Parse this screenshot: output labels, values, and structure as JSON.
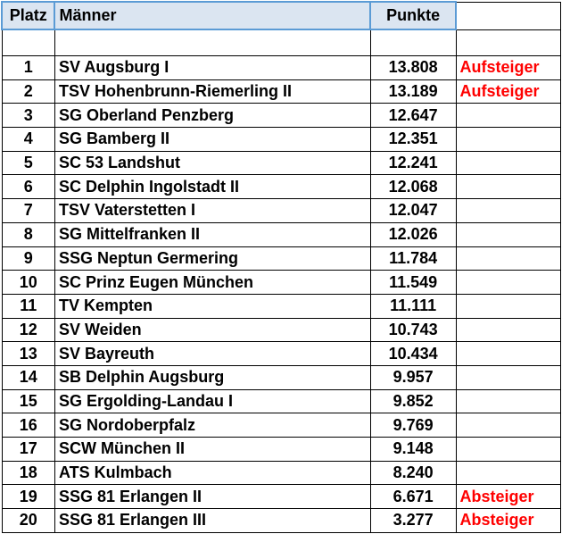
{
  "header": {
    "platz": "Platz",
    "name": "Männer",
    "punkte": "Punkte"
  },
  "colors": {
    "header_bg": "#dbe5f1",
    "header_border": "#5b9bd5",
    "status": "#ff0000"
  },
  "rows": [
    {
      "platz": "1",
      "name": "SV Augsburg I",
      "punkte": "13.808",
      "status": "Aufsteiger"
    },
    {
      "platz": "2",
      "name": "TSV Hohenbrunn-Riemerling II",
      "punkte": "13.189",
      "status": "Aufsteiger"
    },
    {
      "platz": "3",
      "name": "SG Oberland Penzberg",
      "punkte": "12.647",
      "status": ""
    },
    {
      "platz": "4",
      "name": "SG Bamberg II",
      "punkte": "12.351",
      "status": ""
    },
    {
      "platz": "5",
      "name": "SC 53 Landshut",
      "punkte": "12.241",
      "status": ""
    },
    {
      "platz": "6",
      "name": "SC Delphin Ingolstadt II",
      "punkte": "12.068",
      "status": ""
    },
    {
      "platz": "7",
      "name": "TSV Vaterstetten I",
      "punkte": "12.047",
      "status": ""
    },
    {
      "platz": "8",
      "name": "SG Mittelfranken II",
      "punkte": "12.026",
      "status": ""
    },
    {
      "platz": "9",
      "name": "SSG Neptun Germering",
      "punkte": "11.784",
      "status": ""
    },
    {
      "platz": "10",
      "name": "SC Prinz Eugen München",
      "punkte": "11.549",
      "status": ""
    },
    {
      "platz": "11",
      "name": "TV Kempten",
      "punkte": "11.111",
      "status": ""
    },
    {
      "platz": "12",
      "name": "SV Weiden",
      "punkte": "10.743",
      "status": ""
    },
    {
      "platz": "13",
      "name": "SV Bayreuth",
      "punkte": "10.434",
      "status": ""
    },
    {
      "platz": "14",
      "name": "SB Delphin Augsburg",
      "punkte": "9.957",
      "status": ""
    },
    {
      "platz": "15",
      "name": "SG Ergolding-Landau I",
      "punkte": "9.852",
      "status": ""
    },
    {
      "platz": "16",
      "name": "SG Nordoberpfalz",
      "punkte": "9.769",
      "status": ""
    },
    {
      "platz": "17",
      "name": "SCW München II",
      "punkte": "9.148",
      "status": ""
    },
    {
      "platz": "18",
      "name": "ATS Kulmbach",
      "punkte": "8.240",
      "status": ""
    },
    {
      "platz": "19",
      "name": "SSG 81 Erlangen II",
      "punkte": "6.671",
      "status": "Absteiger"
    },
    {
      "platz": "20",
      "name": "SSG 81 Erlangen III",
      "punkte": "3.277",
      "status": "Absteiger"
    }
  ]
}
